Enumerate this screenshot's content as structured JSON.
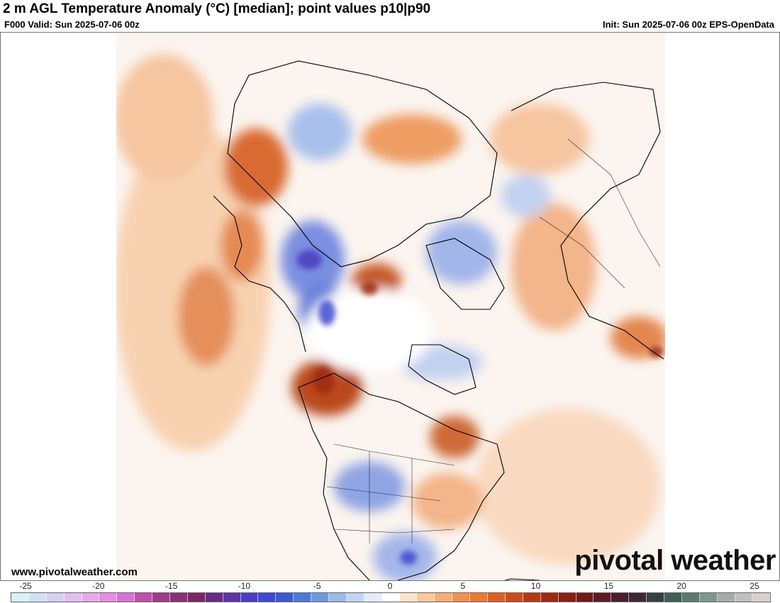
{
  "header": {
    "title": "2 m AGL Temperature Anomaly (°C) [median]; point values p10|p90",
    "valid": "F000 Valid: Sun 2025-07-06 00z",
    "init": "Init: Sun 2025-07-06 00z EPS-OpenData"
  },
  "footer": {
    "site": "www.pivotalweather.com",
    "brand": "pivotal weather"
  },
  "colorbar": {
    "ticks": [
      "-25",
      "-20",
      "-15",
      "-10",
      "-5",
      "0",
      "5",
      "10",
      "15",
      "20",
      "25"
    ],
    "colors": [
      "#d4f4fb",
      "#cfe1f7",
      "#d8cdf3",
      "#e1bff0",
      "#e8a8ec",
      "#e58de4",
      "#d872d2",
      "#c04fae",
      "#a33a8b",
      "#8a2f74",
      "#7b2669",
      "#6a2a86",
      "#5b35a6",
      "#4b3cc0",
      "#3f48cf",
      "#3a5bd3",
      "#4a7bd8",
      "#6f9ae0",
      "#9ab8e8",
      "#c2d6f0",
      "#e3ecf8",
      "#ffffff",
      "#fde3cc",
      "#fbc99c",
      "#f7ae73",
      "#f2924e",
      "#e97a33",
      "#db6123",
      "#c94c17",
      "#b23a12",
      "#9e2b10",
      "#8a1f13",
      "#741a1a",
      "#5e1a24",
      "#4b1d2e",
      "#3d2836",
      "#3a3f44",
      "#3f5f5a",
      "#5b7b72",
      "#7e968e",
      "#a4aca8",
      "#c2bfbc",
      "#d9cfcd"
    ]
  },
  "map": {
    "projection": "north-polar stereographic",
    "background": "#ffffff",
    "boundary_color": "#000000"
  }
}
